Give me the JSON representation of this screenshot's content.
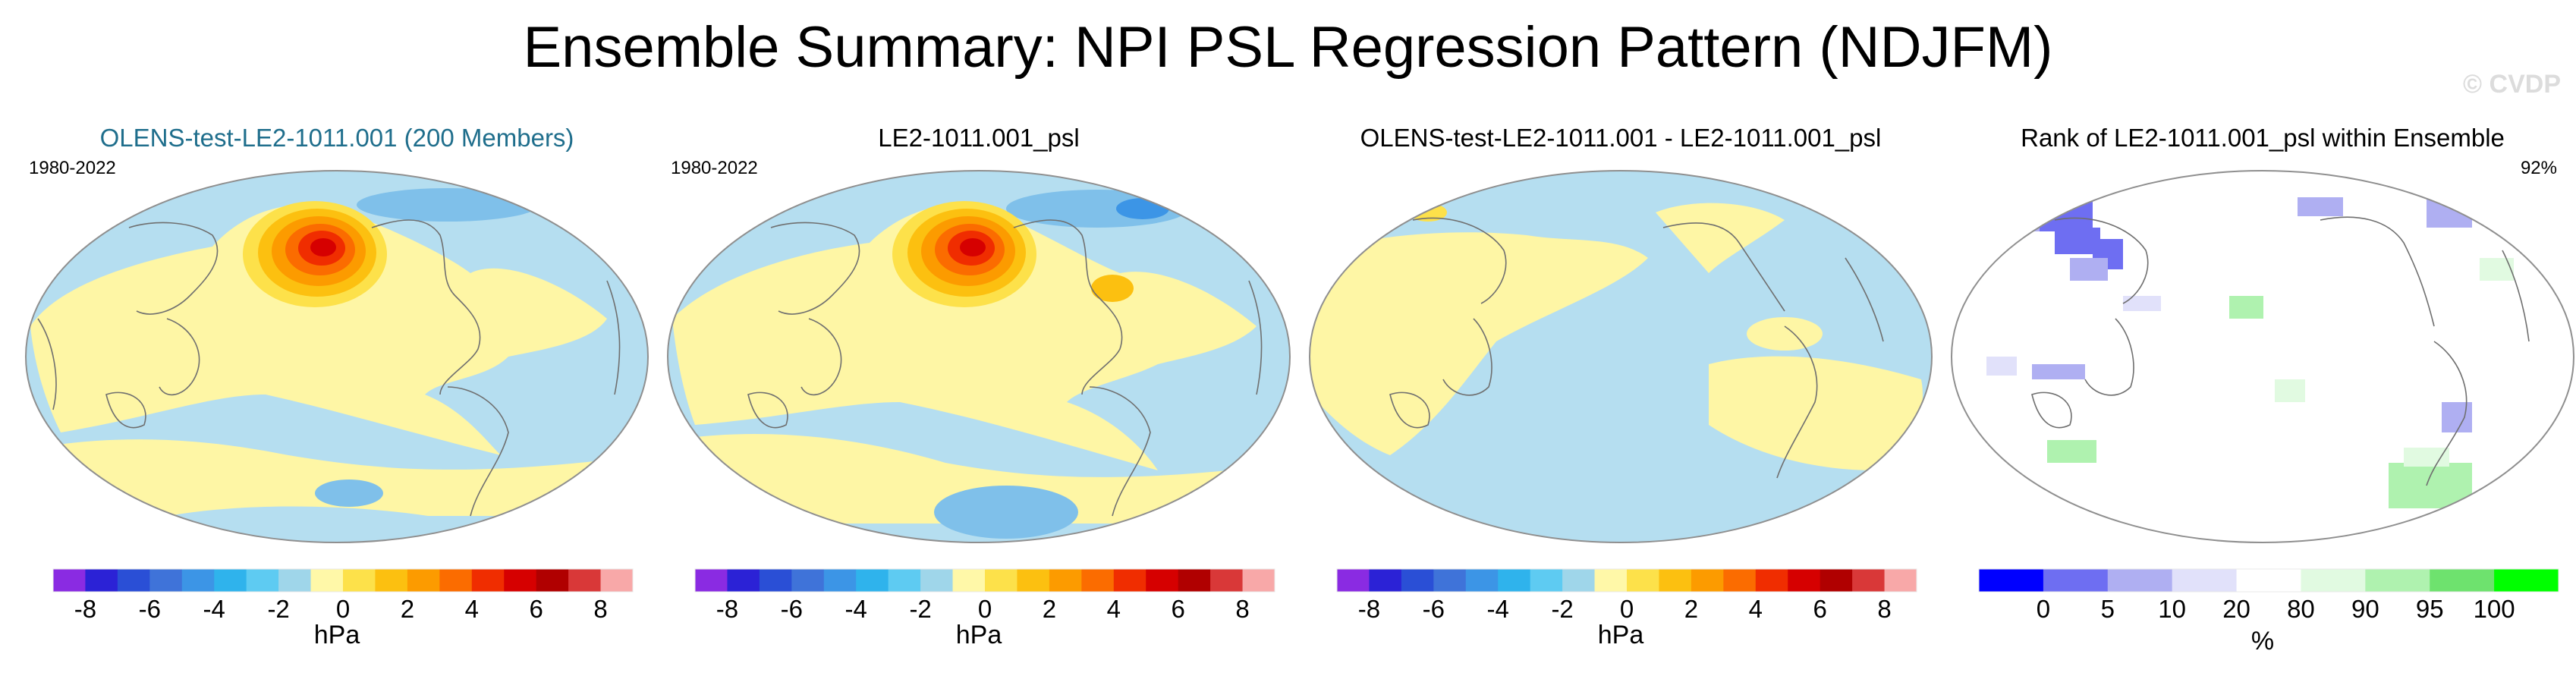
{
  "title": "Ensemble Summary: NPI PSL Regression Pattern (NDJFM)",
  "watermark": "© CVDP",
  "colors": {
    "title_teal": "#1f6e8c",
    "neg_fill": "#b5def0",
    "pos_fill": "#fef6a5",
    "map_outline": "#8f8f8f",
    "coast": "#6f6f6f"
  },
  "panels": [
    {
      "title": "OLENS-test-LE2-1011.001 (200 Members)",
      "left_tag": "1980-2022",
      "right_tag": "",
      "colorbar": "diverging"
    },
    {
      "title": "LE2-1011.001_psl",
      "left_tag": "1980-2022",
      "right_tag": "",
      "colorbar": "diverging"
    },
    {
      "title": "OLENS-test-LE2-1011.001 - LE2-1011.001_psl",
      "left_tag": "",
      "right_tag": "",
      "colorbar": "diverging"
    },
    {
      "title": "Rank of LE2-1011.001_psl within Ensemble",
      "left_tag": "",
      "right_tag": "92%",
      "colorbar": "rank"
    }
  ],
  "diverging_colorbar": {
    "unit": "hPa",
    "colors": [
      "#8a2be2",
      "#2b22d6",
      "#2a4fd6",
      "#3f73d9",
      "#3c95e6",
      "#2fb3ec",
      "#5ecbf2",
      "#9fd6ea",
      "#fff8a8",
      "#fde14a",
      "#fcc010",
      "#fc9b00",
      "#fb6c00",
      "#f02d00",
      "#d60000",
      "#b00000",
      "#d93838",
      "#f8a8a8"
    ],
    "ticks": [
      "-8",
      "-6",
      "-4",
      "-2",
      "0",
      "2",
      "4",
      "6",
      "8"
    ]
  },
  "rank_colorbar": {
    "unit": "%",
    "colors": [
      "#0000ff",
      "#6e6ef2",
      "#afaff2",
      "#e1e1fa",
      "#ffffff",
      "#e1fae1",
      "#aff2af",
      "#6ee26e",
      "#00ff00"
    ],
    "ticks": [
      "0",
      "5",
      "10",
      "20",
      "80",
      "90",
      "95",
      "100"
    ]
  }
}
